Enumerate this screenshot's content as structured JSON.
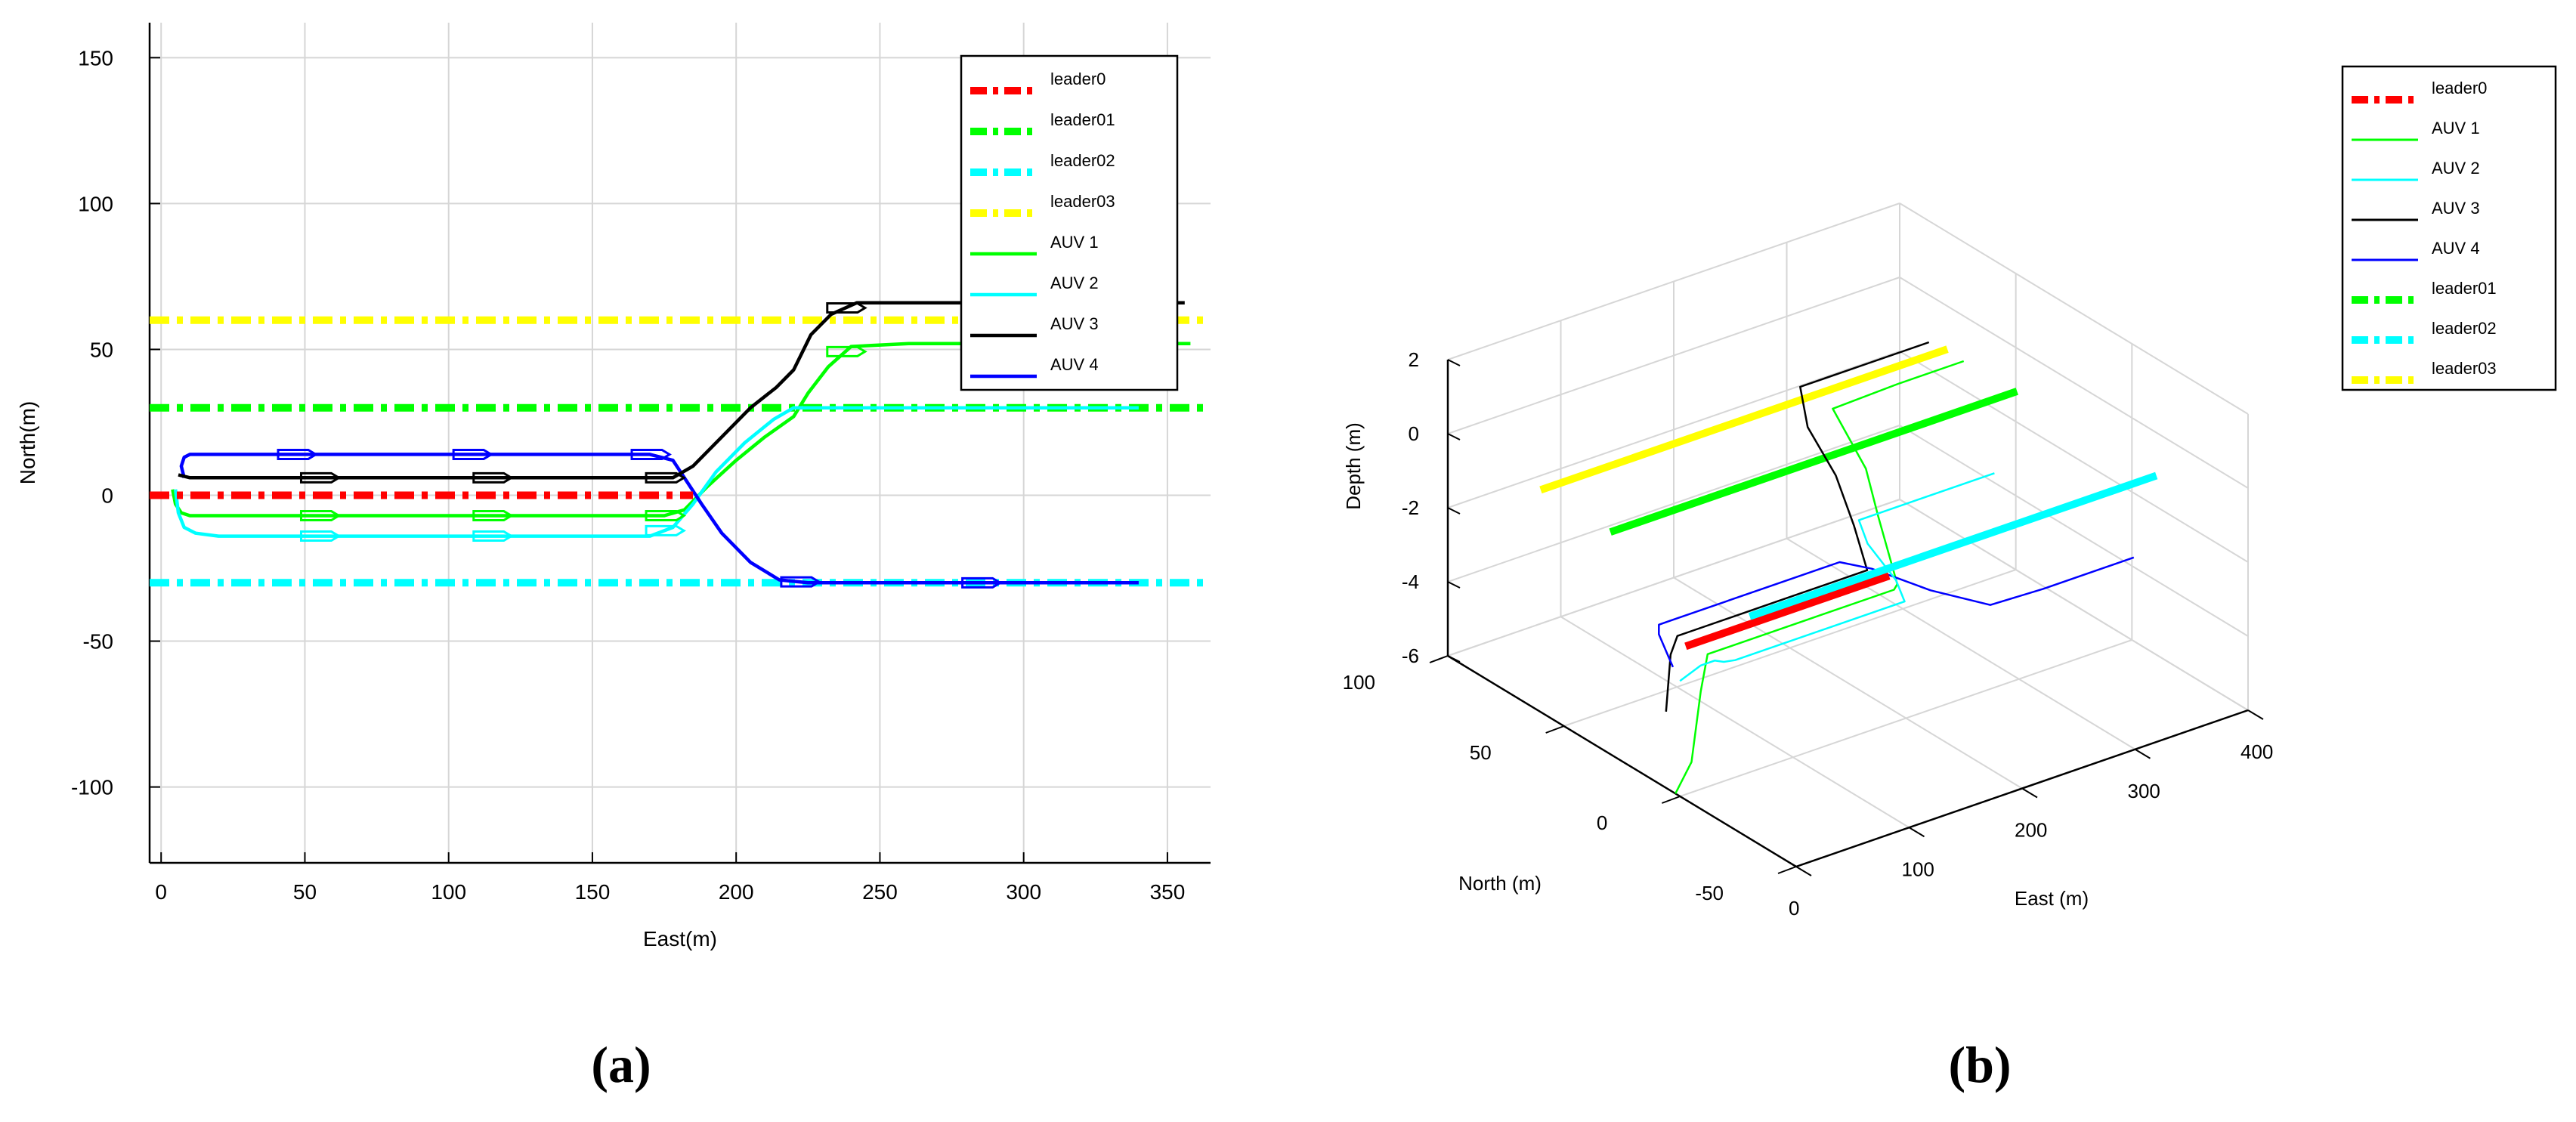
{
  "figure": {
    "caption_a": "(a)",
    "caption_b": "(b)"
  },
  "colors": {
    "red": "#ff0000",
    "green": "#00ff00",
    "cyan": "#00ffff",
    "yellow": "#ffff00",
    "black": "#000000",
    "blue": "#0000ff",
    "grid": "#d6d6d6"
  },
  "chart_data": [
    {
      "type": "line",
      "panel": "(a)",
      "xlabel": "East(m)",
      "ylabel": "North(m)",
      "xlim": [
        -4,
        365
      ],
      "ylim": [
        -126,
        162
      ],
      "xticks": [
        0,
        50,
        100,
        150,
        200,
        250,
        300,
        350
      ],
      "yticks": [
        -100,
        -50,
        0,
        50,
        100,
        150
      ],
      "grid": true,
      "legend_position": "top-right",
      "series": [
        {
          "name": "leader0",
          "style": "dashdot-thick",
          "color": "#ff0000",
          "x": [
            -4,
            185
          ],
          "y": [
            0,
            0
          ]
        },
        {
          "name": "leader01",
          "style": "dashdot-thick",
          "color": "#00ff00",
          "x": [
            -4,
            365
          ],
          "y": [
            30,
            30
          ]
        },
        {
          "name": "leader02",
          "style": "dashdot-thick",
          "color": "#00ffff",
          "x": [
            -4,
            365
          ],
          "y": [
            -30,
            -30
          ]
        },
        {
          "name": "leader03",
          "style": "dashdot-thick",
          "color": "#ffff00",
          "x": [
            -4,
            365
          ],
          "y": [
            60,
            60
          ]
        },
        {
          "name": "AUV 1",
          "style": "solid",
          "color": "#00ff00",
          "x": [
            4,
            5,
            7,
            10,
            20,
            100,
            175,
            182,
            190,
            200,
            210,
            220,
            225,
            232,
            240,
            260,
            300,
            358
          ],
          "y": [
            2,
            -3,
            -6,
            -7,
            -7,
            -7,
            -7,
            -5,
            3,
            12,
            20,
            27,
            35,
            44,
            51,
            52,
            52,
            52
          ]
        },
        {
          "name": "AUV 2",
          "style": "solid",
          "color": "#00ffff",
          "x": [
            5,
            6,
            8,
            12,
            20,
            100,
            170,
            178,
            185,
            193,
            203,
            213,
            220,
            230,
            280,
            340
          ],
          "y": [
            2,
            -6,
            -11,
            -13,
            -14,
            -14,
            -14,
            -11,
            -3,
            8,
            18,
            26,
            30,
            30,
            30,
            30
          ]
        },
        {
          "name": "AUV 3",
          "style": "solid",
          "color": "#000000",
          "x": [
            6,
            10,
            20,
            100,
            178,
            185,
            195,
            205,
            214,
            220,
            226,
            233,
            242,
            260,
            300,
            356
          ],
          "y": [
            7,
            6,
            6,
            6,
            6,
            10,
            20,
            30,
            37,
            43,
            55,
            62,
            66,
            66,
            66,
            66
          ]
        },
        {
          "name": "AUV 4",
          "style": "solid",
          "color": "#0000ff",
          "x": [
            8,
            7,
            8,
            10,
            20,
            100,
            170,
            178,
            182,
            188,
            195,
            205,
            215,
            225,
            260,
            340
          ],
          "y": [
            6,
            10,
            13,
            14,
            14,
            14,
            14,
            12,
            6,
            -3,
            -13,
            -23,
            -29,
            -30,
            -30,
            -30
          ]
        }
      ],
      "legend": [
        "leader0",
        "leader01",
        "leader02",
        "leader03",
        "AUV 1",
        "AUV 2",
        "AUV 3",
        "AUV 4"
      ]
    },
    {
      "type": "line",
      "panel": "(b)",
      "projection": "3d",
      "xlabel": "East (m)",
      "ylabel": "North (m)",
      "zlabel": "Depth (m)",
      "xlim": [
        0,
        400
      ],
      "ylim": [
        -50,
        100
      ],
      "zlim": [
        -6,
        2
      ],
      "xticks": [
        0,
        100,
        200,
        300,
        400
      ],
      "yticks": [
        -50,
        0,
        50,
        100
      ],
      "zticks": [
        -6,
        -4,
        -2,
        0,
        2
      ],
      "grid": true,
      "legend_position": "top-right-outside",
      "series": [
        {
          "name": "leader0",
          "style": "solid-thick",
          "color": "#ff0000",
          "x": [
            5,
            185
          ],
          "y": [
            0,
            0
          ],
          "z": [
            -2,
            -2
          ]
        },
        {
          "name": "AUV 1",
          "style": "solid",
          "color": "#00ff00",
          "x": [
            0,
            4,
            6,
            10,
            20,
            100,
            175,
            182,
            200,
            220,
            232,
            240,
            300,
            358
          ],
          "y": [
            2,
            -3,
            -6,
            -7,
            -7,
            -7,
            -7,
            -5,
            12,
            27,
            44,
            51,
            52,
            52
          ],
          "z": [
            -6,
            -5,
            -3,
            -2,
            -2,
            -2,
            -2,
            -2,
            -1,
            -0.5,
            0,
            0,
            0,
            0
          ]
        },
        {
          "name": "AUV 2",
          "style": "solid",
          "color": "#00ffff",
          "x": [
            4,
            6,
            8,
            12,
            20,
            100,
            170,
            185,
            203,
            220,
            280,
            340
          ],
          "y": [
            2,
            -6,
            -11,
            -13,
            -14,
            -14,
            -14,
            -3,
            18,
            30,
            30,
            30
          ],
          "z": [
            -3,
            -2.3,
            -2,
            -2,
            -2,
            -2,
            -2,
            -2,
            -2,
            -2,
            -2,
            -2
          ]
        },
        {
          "name": "AUV 3",
          "style": "solid",
          "color": "#000000",
          "x": [
            2,
            6,
            10,
            20,
            100,
            178,
            195,
            214,
            226,
            242,
            300,
            356
          ],
          "y": [
            7,
            7,
            6,
            6,
            6,
            6,
            20,
            37,
            55,
            66,
            66,
            66
          ],
          "z": [
            -4,
            -2.5,
            -2,
            -2,
            -2,
            -2,
            -1.5,
            -1,
            -0.5,
            0,
            0,
            0
          ]
        },
        {
          "name": "AUV 4",
          "style": "solid",
          "color": "#0000ff",
          "x": [
            6,
            8,
            10,
            20,
            100,
            170,
            182,
            195,
            215,
            260,
            340
          ],
          "y": [
            6,
            13,
            14,
            14,
            14,
            14,
            6,
            -13,
            -29,
            -30,
            -30
          ],
          "z": [
            -2.8,
            -2.2,
            -2,
            -2,
            -2,
            -2,
            -2,
            -2,
            -2,
            -2,
            -2
          ]
        },
        {
          "name": "leader01",
          "style": "solid-thick",
          "color": "#00ff00",
          "x": [
            0,
            360
          ],
          "y": [
            30,
            30
          ],
          "z": [
            0,
            0
          ]
        },
        {
          "name": "leader02",
          "style": "solid-thick",
          "color": "#00ffff",
          "x": [
            0,
            360
          ],
          "y": [
            -30,
            -30
          ],
          "z": [
            0,
            0
          ]
        },
        {
          "name": "leader03",
          "style": "solid-thick",
          "color": "#ffff00",
          "x": [
            0,
            360
          ],
          "y": [
            60,
            60
          ],
          "z": [
            0,
            0
          ]
        }
      ],
      "legend": [
        "leader0",
        "AUV 1",
        "AUV 2",
        "AUV 3",
        "AUV 4",
        "leader01",
        "leader02",
        "leader03"
      ]
    }
  ]
}
